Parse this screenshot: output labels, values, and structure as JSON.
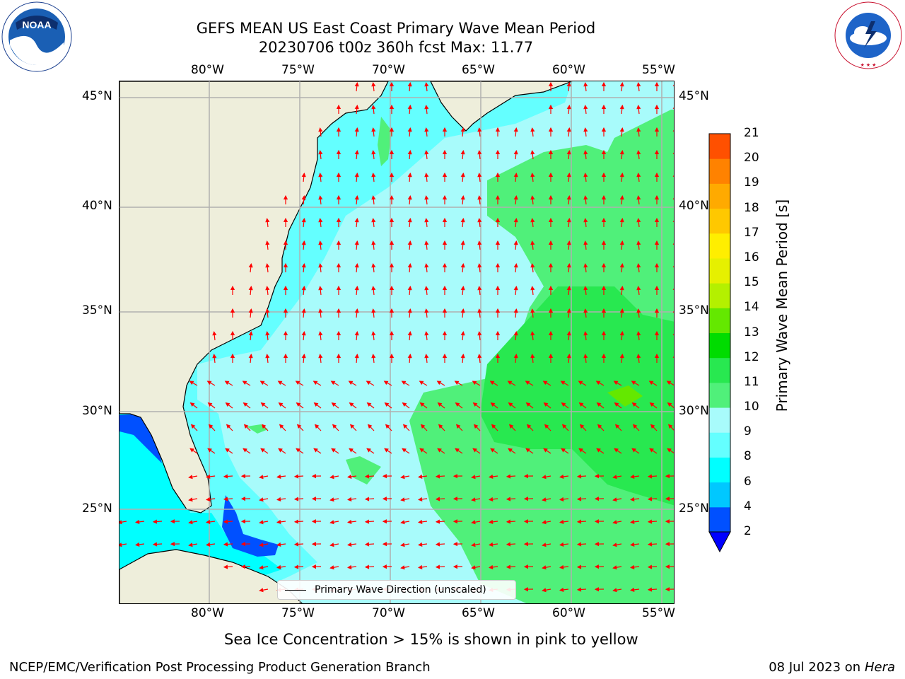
{
  "title": {
    "line1": "GEFS MEAN US East Coast Primary Wave Mean Period",
    "line2": "20230706 t00z 360h fcst   Max: 11.77"
  },
  "axes": {
    "lon_labels": [
      "80°W",
      "75°W",
      "70°W",
      "65°W",
      "60°W",
      "55°W"
    ],
    "lat_labels": [
      "45°N",
      "40°N",
      "35°N",
      "30°N",
      "25°N"
    ]
  },
  "legend": {
    "label": "Primary Wave Direction (unscaled)"
  },
  "colorbar": {
    "title": "Primary Wave Mean Period [s]",
    "ticks": [
      "2",
      "4",
      "6",
      "8",
      "9",
      "10",
      "11",
      "12",
      "13",
      "14",
      "15",
      "16",
      "17",
      "18",
      "19",
      "20",
      "21"
    ],
    "colors": [
      "#0050ff",
      "#00c8ff",
      "#00ffff",
      "#64ffff",
      "#a8fbfb",
      "#50f07a",
      "#28e850",
      "#00dc00",
      "#64e800",
      "#b4f000",
      "#e6f000",
      "#ffee00",
      "#ffc800",
      "#ffaa00",
      "#ff8200",
      "#ff5000",
      "#ff1e00",
      "#ff0000"
    ],
    "extend_color": "#0000ff"
  },
  "footer": {
    "note": "Sea Ice Concentration > 15% is shown in pink to yellow",
    "credit": "NCEP/EMC/Verification Post Processing Product Generation Branch",
    "date": "08 Jul 2023 on",
    "machine": "Hera"
  },
  "colors": {
    "land": "#eeeedb",
    "ocean_low": "#a8fbfb",
    "arrow": "#ff0000",
    "grid": "#b0b0b0"
  },
  "logos": {
    "noaa_text": "NOAA",
    "noaa_ring": "NATIONAL OCEANIC AND ATMOSPHERIC ADMINISTRATION · U.S. DEPARTMENT OF COMMERCE",
    "nws_ring": "NATIONAL WEATHER SERVICE"
  }
}
